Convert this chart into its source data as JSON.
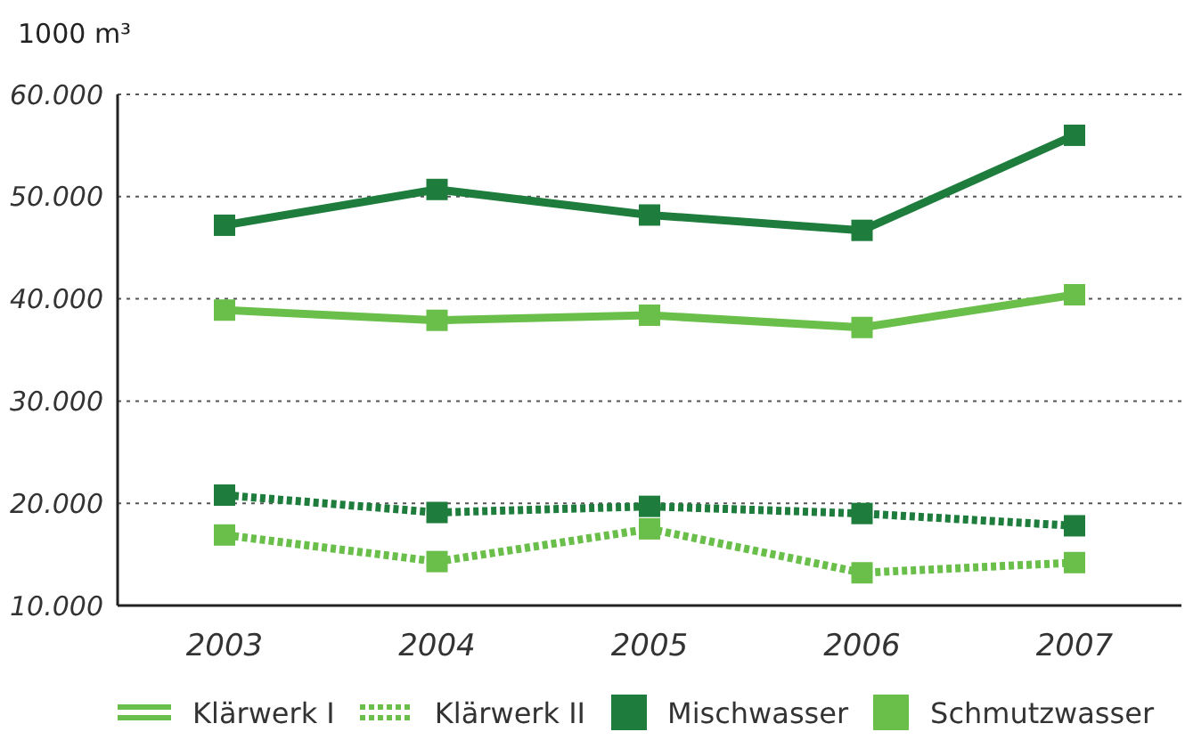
{
  "chart_data": {
    "type": "line",
    "ylabel": "1000 m³",
    "categories": [
      "2003",
      "2004",
      "2005",
      "2006",
      "2007"
    ],
    "series": [
      {
        "color": "#1e7d3c",
        "line_style": "solid",
        "values": [
          47200,
          50700,
          48200,
          46700,
          56000
        ]
      },
      {
        "color": "#6abf4b",
        "line_style": "solid",
        "values": [
          38900,
          37900,
          38400,
          37200,
          40400
        ]
      },
      {
        "color": "#1e7d3c",
        "line_style": "dotted",
        "values": [
          20800,
          19100,
          19700,
          19000,
          17800
        ]
      },
      {
        "color": "#6abf4b",
        "line_style": "dotted",
        "values": [
          16900,
          14300,
          17500,
          13200,
          14200
        ]
      }
    ],
    "ylim": [
      10000,
      60000
    ],
    "yticks": [
      {
        "value": 10000,
        "label": "10.000"
      },
      {
        "value": 20000,
        "label": "20.000"
      },
      {
        "value": 30000,
        "label": "30.000"
      },
      {
        "value": 40000,
        "label": "40.000"
      },
      {
        "value": 50000,
        "label": "50.000"
      },
      {
        "value": 60000,
        "label": "60.000"
      }
    ],
    "grid": "y",
    "marker": "square",
    "annotations": [
      "Klärwerk I",
      "Klärwerk II",
      "Mischwasser",
      "Schmutzwasser"
    ]
  }
}
